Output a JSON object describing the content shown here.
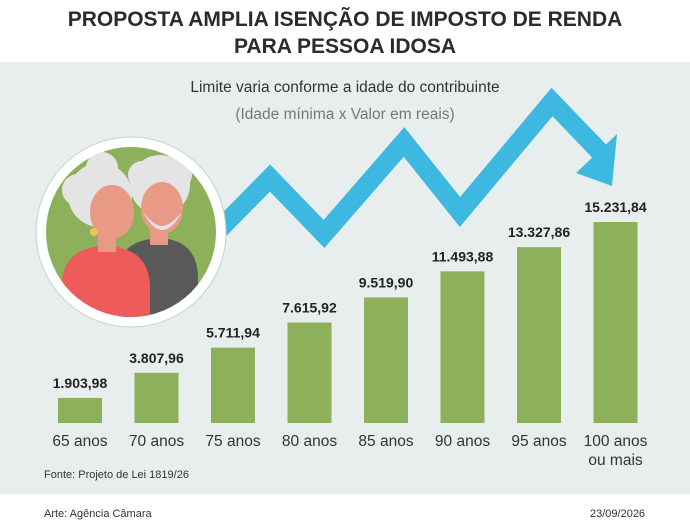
{
  "header": {
    "title_line1": "PROPOSTA AMPLIA ISENÇÃO DE IMPOSTO DE RENDA",
    "title_line2": "PARA PESSOA IDOSA"
  },
  "chart_data": {
    "type": "bar",
    "title": "Limite varia conforme a idade do contribuinte",
    "subtitle": "(Idade mínima x Valor em reais)",
    "categories": [
      "65 anos",
      "70 anos",
      "75 anos",
      "80 anos",
      "85 anos",
      "90 anos",
      "95 anos",
      "100 anos ou mais"
    ],
    "values": [
      1903.98,
      3807.96,
      5711.94,
      7615.92,
      9519.9,
      11493.88,
      13327.86,
      15231.84
    ],
    "value_labels": [
      "1.903,98",
      "3.807,96",
      "5.711,94",
      "7.615,92",
      "9.519,90",
      "11.493,88",
      "13.327,86",
      "15.231,84"
    ],
    "ylim": [
      0,
      15231.84
    ],
    "grid": false,
    "colors": {
      "bar": "#8db05a",
      "trend_arrow": "#3db8e0"
    }
  },
  "footer": {
    "source": "Fonte: Projeto de Lei 1819/26",
    "credit": "Arte: Agência Câmara",
    "date": "23/09/2026"
  }
}
